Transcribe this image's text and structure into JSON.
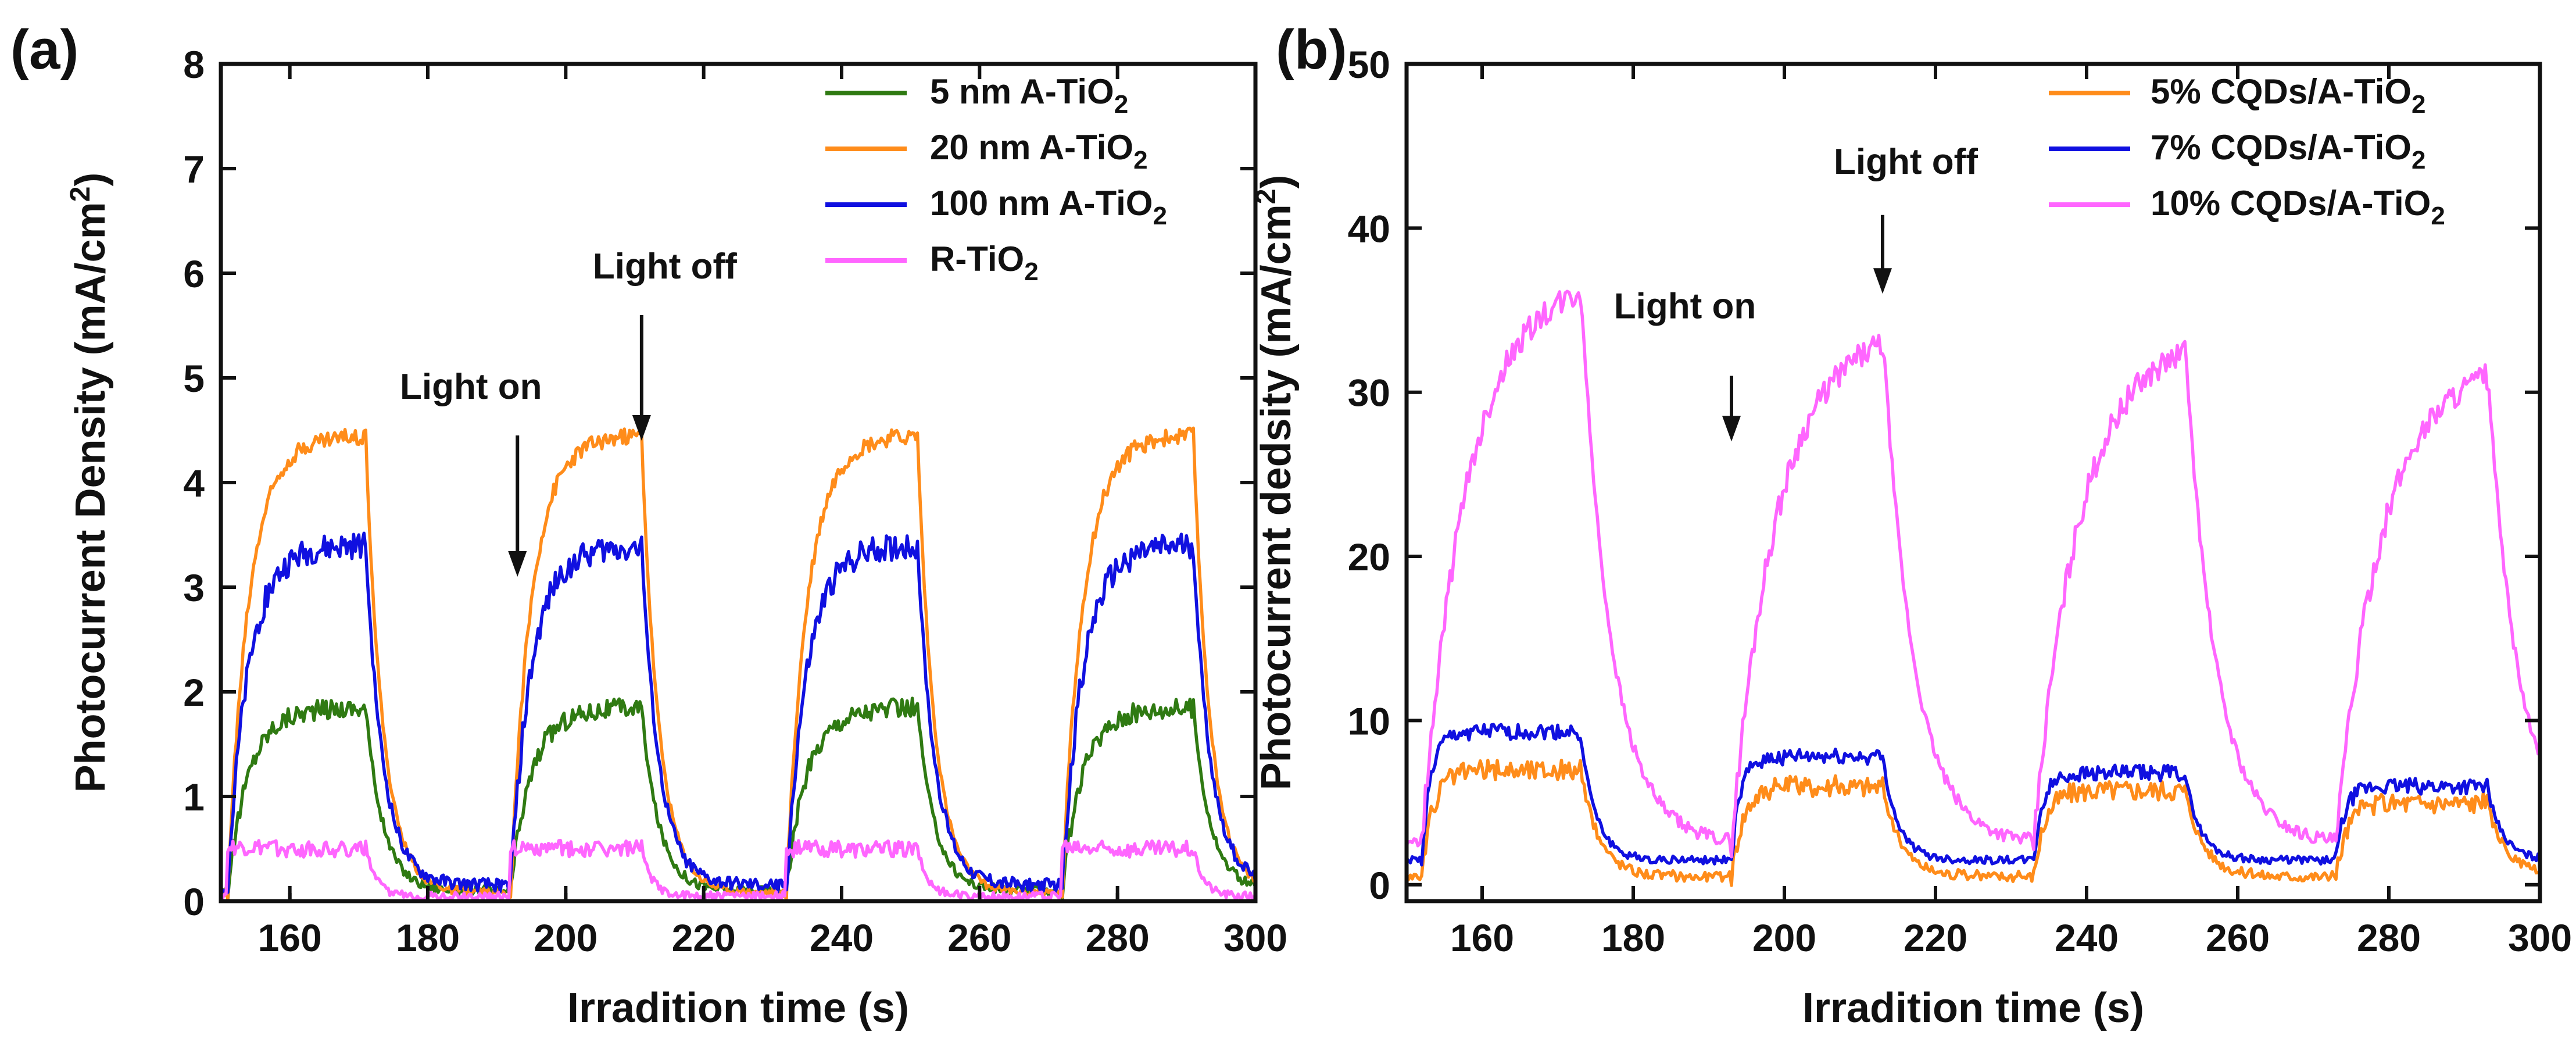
{
  "chart_data": [
    {
      "id": "a",
      "type": "line",
      "panel_label": "(a)",
      "title": "",
      "xlabel": "Irradition time (s)",
      "ylabel": "Photocurrent Density (mA/cm²)",
      "ylabel_parts": {
        "main": "Photocurrent Density (mA/cm",
        "sup": "2",
        "end": ")"
      },
      "xlim": [
        150,
        300
      ],
      "ylim": [
        0,
        8
      ],
      "xticks": [
        160,
        180,
        200,
        220,
        240,
        260,
        280,
        300
      ],
      "yticks": [
        0,
        1,
        2,
        3,
        4,
        5,
        6,
        7,
        8
      ],
      "grid": false,
      "legend_position": "top-right",
      "cycles": {
        "on_times": [
          151,
          192,
          232,
          272
        ],
        "off_times": [
          171,
          211,
          251,
          291
        ]
      },
      "annotations": [
        {
          "text": "Light on",
          "x": 193,
          "y_text": 4.8,
          "arrow_from": 4.45,
          "arrow_to": 3.1
        },
        {
          "text": "Light off",
          "x": 211,
          "y_text": 5.95,
          "arrow_from": 5.6,
          "arrow_to": 4.4
        }
      ],
      "series": [
        {
          "name": "5 nm A-TiO",
          "sub": "2",
          "color": "#2f7a12",
          "on_value": 1.85,
          "off_value": 0.1,
          "rise_tau": 3.0,
          "decay_tau": 2.5,
          "noise": 0.06
        },
        {
          "name": "20 nm A-TiO",
          "sub": "2",
          "color": "#ff8c1a",
          "on_value": 4.45,
          "off_value": 0.08,
          "rise_tau": 3.0,
          "decay_tau": 2.5,
          "noise": 0.05
        },
        {
          "name": "100 nm A-TiO",
          "sub": "2",
          "color": "#1010e0",
          "on_value": 3.4,
          "off_value": 0.15,
          "rise_tau": 3.0,
          "decay_tau": 2.5,
          "noise": 0.08
        },
        {
          "name": "R-TiO",
          "sub": "2",
          "color": "#ff66ff",
          "on_value": 0.5,
          "off_value": 0.05,
          "rise_tau": 0.5,
          "decay_tau": 1.5,
          "noise": 0.05
        }
      ]
    },
    {
      "id": "b",
      "type": "line",
      "panel_label": "(b)",
      "title": "",
      "xlabel": "Irradition time (s)",
      "ylabel": "Photocurrent dedsity (mA/cm²)",
      "ylabel_parts": {
        "main": "Photocurrent dedsity (mA/cm",
        "sup": "2",
        "end": ")"
      },
      "xlim": [
        150,
        300
      ],
      "ylim": [
        -1,
        50
      ],
      "xticks": [
        160,
        180,
        200,
        220,
        240,
        260,
        280,
        300
      ],
      "yticks": [
        0,
        10,
        20,
        30,
        40,
        50
      ],
      "grid": false,
      "legend_position": "top-right",
      "cycles": {
        "on_times": [
          152,
          193,
          233,
          273
        ],
        "off_times": [
          173,
          213,
          253,
          293
        ]
      },
      "annotations": [
        {
          "text": "Light on",
          "x": 193,
          "y_text": 34.5,
          "arrow_from": 31,
          "arrow_to": 27
        },
        {
          "text": "Light off",
          "x": 213,
          "y_text": 43.3,
          "arrow_from": 40.8,
          "arrow_to": 36
        }
      ],
      "series": [
        {
          "name": "5% CQDs/A-TiO",
          "sub": "2",
          "color": "#ff8c1a",
          "cycle_peaks": [
            7.0,
            6.0,
            5.8,
            5.0
          ],
          "off_value": 0.5,
          "rise_tau": 1.5,
          "decay_tau": 2.5,
          "noise": 0.4
        },
        {
          "name": "7% CQDs/A-TiO",
          "sub": "2",
          "color": "#1010e0",
          "cycle_peaks": [
            9.3,
            7.8,
            6.8,
            6.0
          ],
          "off_value": 1.5,
          "rise_tau": 1.2,
          "decay_tau": 2.0,
          "noise": 0.3
        },
        {
          "name": "10% CQDs/A-TiO",
          "sub": "2",
          "color": "#ff66ff",
          "cycle_peaks": [
            37.0,
            34.0,
            33.5,
            32.0
          ],
          "off_value": 2.5,
          "rise_tau": 6.0,
          "decay_tau": 4.0,
          "noise": 0.5
        }
      ]
    }
  ]
}
